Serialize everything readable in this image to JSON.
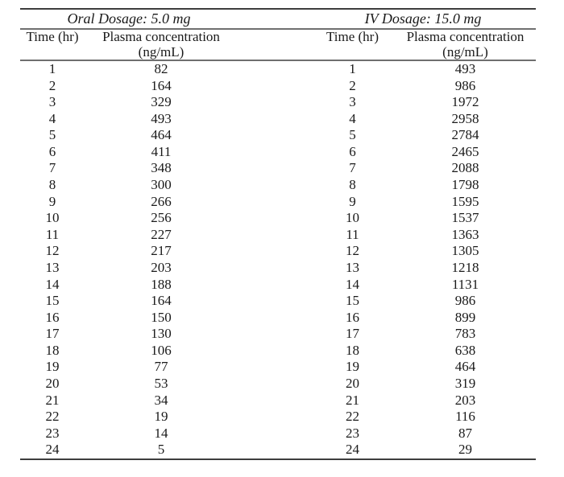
{
  "colors": {
    "background": "#ffffff",
    "text": "#1a1a1a",
    "rule_dark": "#3d3d3d",
    "rule_mid": "#6f6f6f"
  },
  "table": {
    "sections": [
      {
        "title": "Oral Dosage: 5.0 mg",
        "time_header": "Time (hr)",
        "conc_header": "Plasma concentration",
        "conc_units": "(ng/mL)"
      },
      {
        "title": "IV Dosage: 15.0 mg",
        "time_header": "Time (hr)",
        "conc_header": "Plasma concentration",
        "conc_units": "(ng/mL)"
      }
    ],
    "rows": [
      {
        "time": "1",
        "oral": "82",
        "iv": "493"
      },
      {
        "time": "2",
        "oral": "164",
        "iv": "986"
      },
      {
        "time": "3",
        "oral": "329",
        "iv": "1972"
      },
      {
        "time": "4",
        "oral": "493",
        "iv": "2958"
      },
      {
        "time": "5",
        "oral": "464",
        "iv": "2784"
      },
      {
        "time": "6",
        "oral": "411",
        "iv": "2465"
      },
      {
        "time": "7",
        "oral": "348",
        "iv": "2088"
      },
      {
        "time": "8",
        "oral": "300",
        "iv": "1798"
      },
      {
        "time": "9",
        "oral": "266",
        "iv": "1595"
      },
      {
        "time": "10",
        "oral": "256",
        "iv": "1537"
      },
      {
        "time": "11",
        "oral": "227",
        "iv": "1363"
      },
      {
        "time": "12",
        "oral": "217",
        "iv": "1305"
      },
      {
        "time": "13",
        "oral": "203",
        "iv": "1218"
      },
      {
        "time": "14",
        "oral": "188",
        "iv": "1131"
      },
      {
        "time": "15",
        "oral": "164",
        "iv": "986"
      },
      {
        "time": "16",
        "oral": "150",
        "iv": "899"
      },
      {
        "time": "17",
        "oral": "130",
        "iv": "783"
      },
      {
        "time": "18",
        "oral": "106",
        "iv": "638"
      },
      {
        "time": "19",
        "oral": "77",
        "iv": "464"
      },
      {
        "time": "20",
        "oral": "53",
        "iv": "319"
      },
      {
        "time": "21",
        "oral": "34",
        "iv": "203"
      },
      {
        "time": "22",
        "oral": "19",
        "iv": "116"
      },
      {
        "time": "23",
        "oral": "14",
        "iv": "87"
      },
      {
        "time": "24",
        "oral": "5",
        "iv": "29"
      }
    ]
  }
}
